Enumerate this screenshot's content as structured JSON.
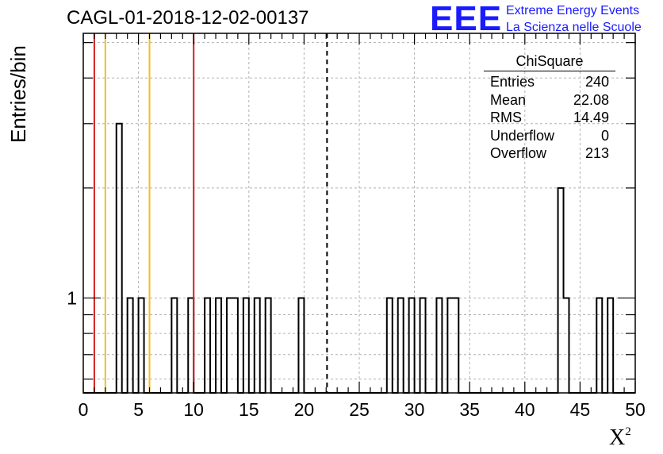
{
  "header": {
    "title": "CAGL-01-2018-12-02-00137"
  },
  "logo": {
    "mark": "EEE",
    "line1": "Extreme Energy Events",
    "line2": "La Scienza nelle Scuole",
    "color": "#1a1aff"
  },
  "stats_box": {
    "title": "ChiSquare",
    "rows": [
      {
        "label": "Entries",
        "value": "240"
      },
      {
        "label": "Mean",
        "value": "22.08"
      },
      {
        "label": "RMS",
        "value": "14.49"
      },
      {
        "label": "Underflow",
        "value": "0"
      },
      {
        "label": "Overflow",
        "value": "213"
      }
    ]
  },
  "chart_data": {
    "type": "bar",
    "histogram": true,
    "xlabel": "X",
    "xlabel_sup": "2",
    "ylabel": "Entries/bin",
    "xlim": [
      0,
      50
    ],
    "ylim": [
      0.55,
      5.3
    ],
    "y_scale": "log",
    "grid": true,
    "bin_width": 0.5,
    "x_ticks": [
      0,
      5,
      10,
      15,
      20,
      25,
      30,
      35,
      40,
      45,
      50
    ],
    "y_ticks": [
      1
    ],
    "bins": [
      {
        "x": 3.0,
        "value": 3
      },
      {
        "x": 4.0,
        "value": 1
      },
      {
        "x": 5.0,
        "value": 1
      },
      {
        "x": 8.0,
        "value": 1
      },
      {
        "x": 9.5,
        "value": 1
      },
      {
        "x": 11.0,
        "value": 1
      },
      {
        "x": 12.0,
        "value": 1
      },
      {
        "x": 13.0,
        "value": 1
      },
      {
        "x": 13.5,
        "value": 1
      },
      {
        "x": 14.5,
        "value": 1
      },
      {
        "x": 15.5,
        "value": 1
      },
      {
        "x": 16.5,
        "value": 1
      },
      {
        "x": 19.5,
        "value": 1
      },
      {
        "x": 27.5,
        "value": 1
      },
      {
        "x": 28.5,
        "value": 1
      },
      {
        "x": 29.5,
        "value": 1
      },
      {
        "x": 30.5,
        "value": 1
      },
      {
        "x": 32.0,
        "value": 1
      },
      {
        "x": 33.0,
        "value": 1
      },
      {
        "x": 33.5,
        "value": 1
      },
      {
        "x": 43.0,
        "value": 2
      },
      {
        "x": 43.5,
        "value": 1
      },
      {
        "x": 46.5,
        "value": 1
      },
      {
        "x": 47.5,
        "value": 1
      }
    ],
    "vertical_lines": [
      {
        "x": 1,
        "color": "#d42020",
        "style": "solid"
      },
      {
        "x": 2,
        "color": "#f0c020",
        "style": "solid"
      },
      {
        "x": 6,
        "color": "#f0c020",
        "style": "solid"
      },
      {
        "x": 10,
        "color": "#d42020",
        "style": "solid"
      },
      {
        "x": 22.08,
        "color": "#000000",
        "style": "dashed"
      }
    ]
  }
}
